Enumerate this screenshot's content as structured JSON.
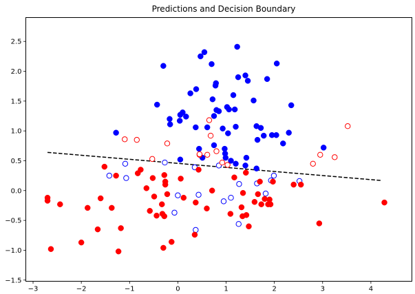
{
  "chart_data": {
    "type": "scatter",
    "title": "Predictions and Decision Boundary",
    "xlabel": "",
    "ylabel": "",
    "xlim": [
      -3.15,
      4.85
    ],
    "ylim": [
      -1.52,
      2.9
    ],
    "xticks": [
      -3,
      -2,
      -1,
      0,
      1,
      2,
      3,
      4
    ],
    "yticks": [
      -1.5,
      -1.0,
      -0.5,
      0.0,
      0.5,
      1.0,
      1.5,
      2.0,
      2.5
    ],
    "xtick_labels": [
      "−3",
      "−2",
      "−1",
      "0",
      "1",
      "2",
      "3",
      "4"
    ],
    "ytick_labels": [
      "−1.5",
      "−1.0",
      "−0.5",
      "0.0",
      "0.5",
      "1.0",
      "1.5",
      "2.0",
      "2.5"
    ],
    "grid": false,
    "colors": {
      "class_0": "#ff0000",
      "class_1": "#0000ff",
      "boundary": "#000000"
    },
    "decision_boundary": {
      "x": [
        -2.7,
        4.2
      ],
      "y": [
        0.64,
        0.17
      ],
      "style": "dashed"
    },
    "series": [
      {
        "class": 1,
        "marker": "filled",
        "color": "#0000ff",
        "points": [
          [
            -1.28,
            0.97
          ],
          [
            -0.43,
            1.44
          ],
          [
            -0.3,
            2.09
          ],
          [
            -0.17,
            1.2
          ],
          [
            -0.16,
            1.11
          ],
          [
            0.04,
            1.17
          ],
          [
            0.05,
            1.27
          ],
          [
            0.1,
            1.31
          ],
          [
            0.17,
            1.24
          ],
          [
            0.26,
            1.63
          ],
          [
            0.37,
            1.06
          ],
          [
            0.38,
            1.7
          ],
          [
            0.47,
            2.25
          ],
          [
            0.55,
            2.32
          ],
          [
            0.61,
            1.06
          ],
          [
            0.7,
            2.12
          ],
          [
            0.72,
            1.53
          ],
          [
            0.75,
            1.25
          ],
          [
            0.78,
            1.76
          ],
          [
            0.79,
            1.8
          ],
          [
            0.8,
            1.35
          ],
          [
            0.85,
            1.33
          ],
          [
            0.93,
            1.04
          ],
          [
            0.97,
            0.7
          ],
          [
            0.98,
            0.62
          ],
          [
            0.99,
            0.55
          ],
          [
            1.02,
            1.4
          ],
          [
            1.04,
            0.96
          ],
          [
            1.06,
            1.36
          ],
          [
            1.15,
            1.6
          ],
          [
            1.18,
            1.36
          ],
          [
            1.2,
            1.07
          ],
          [
            1.23,
            2.41
          ],
          [
            1.25,
            1.9
          ],
          [
            1.4,
            1.93
          ],
          [
            1.45,
            1.84
          ],
          [
            1.57,
            1.51
          ],
          [
            1.63,
            1.08
          ],
          [
            1.65,
            0.85
          ],
          [
            1.72,
            1.05
          ],
          [
            1.78,
            0.92
          ],
          [
            1.85,
            1.87
          ],
          [
            1.95,
            0.93
          ],
          [
            2.04,
            0.93
          ],
          [
            2.05,
            2.13
          ],
          [
            2.18,
            0.79
          ],
          [
            2.3,
            0.97
          ],
          [
            2.35,
            1.43
          ],
          [
            3.02,
            0.72
          ],
          [
            0.05,
            0.52
          ],
          [
            0.44,
            0.7
          ],
          [
            0.51,
            0.55
          ],
          [
            0.75,
            0.76
          ],
          [
            1.1,
            0.5
          ],
          [
            1.2,
            0.45
          ],
          [
            1.4,
            0.42
          ],
          [
            1.63,
            0.37
          ],
          [
            1.42,
            0.55
          ]
        ]
      },
      {
        "class": 1,
        "marker": "hollow",
        "color": "#0000ff",
        "points": [
          [
            -1.42,
            0.25
          ],
          [
            -1.09,
            0.45
          ],
          [
            -1.07,
            0.21
          ],
          [
            -0.27,
            0.47
          ],
          [
            -0.07,
            -0.37
          ],
          [
            0.0,
            -0.08
          ],
          [
            0.35,
            0.39
          ],
          [
            0.37,
            -0.66
          ],
          [
            0.43,
            -0.07
          ],
          [
            0.85,
            0.42
          ],
          [
            0.95,
            -0.18
          ],
          [
            1.1,
            -0.12
          ],
          [
            1.26,
            -0.56
          ],
          [
            1.27,
            0.11
          ],
          [
            1.64,
            0.12
          ],
          [
            1.82,
            -0.05
          ],
          [
            1.93,
            0.17
          ],
          [
            1.99,
            0.25
          ],
          [
            2.52,
            0.16
          ]
        ]
      },
      {
        "class": 0,
        "marker": "filled",
        "color": "#ff0000",
        "points": [
          [
            -2.7,
            -0.12
          ],
          [
            -2.7,
            -0.17
          ],
          [
            -2.63,
            -0.98
          ],
          [
            -2.44,
            -0.23
          ],
          [
            -2.0,
            -0.87
          ],
          [
            -1.87,
            -0.29
          ],
          [
            -1.66,
            -0.65
          ],
          [
            -1.6,
            -0.13
          ],
          [
            -1.52,
            0.4
          ],
          [
            -1.37,
            -0.29
          ],
          [
            -1.28,
            0.25
          ],
          [
            -1.23,
            -1.02
          ],
          [
            -1.18,
            -0.63
          ],
          [
            -0.83,
            0.29
          ],
          [
            -0.77,
            0.35
          ],
          [
            -0.65,
            0.04
          ],
          [
            -0.58,
            -0.34
          ],
          [
            -0.52,
            0.21
          ],
          [
            -0.49,
            -0.1
          ],
          [
            -0.44,
            -0.42
          ],
          [
            -0.33,
            -0.23
          ],
          [
            -0.32,
            -0.39
          ],
          [
            -0.3,
            -0.96
          ],
          [
            -0.28,
            0.26
          ],
          [
            -0.28,
            -0.43
          ],
          [
            -0.26,
            0.15
          ],
          [
            -0.26,
            0.1
          ],
          [
            -0.22,
            -0.06
          ],
          [
            -0.13,
            -0.86
          ],
          [
            0.06,
            0.2
          ],
          [
            0.12,
            -0.12
          ],
          [
            0.35,
            -0.74
          ],
          [
            0.37,
            -0.2
          ],
          [
            0.43,
            0.35
          ],
          [
            0.6,
            -0.3
          ],
          [
            0.71,
            0.0
          ],
          [
            1.09,
            -0.39
          ],
          [
            1.17,
            0.22
          ],
          [
            1.32,
            -0.28
          ],
          [
            1.34,
            -0.43
          ],
          [
            1.35,
            -0.04
          ],
          [
            1.42,
            -0.41
          ],
          [
            1.47,
            -0.6
          ],
          [
            1.59,
            -0.19
          ],
          [
            1.66,
            -0.06
          ],
          [
            1.7,
            0.15
          ],
          [
            1.73,
            -0.23
          ],
          [
            1.8,
            -0.14
          ],
          [
            1.87,
            -0.23
          ],
          [
            1.9,
            -0.15
          ],
          [
            1.92,
            -0.23
          ],
          [
            1.97,
            0.15
          ],
          [
            2.4,
            0.1
          ],
          [
            2.55,
            0.1
          ],
          [
            2.93,
            -0.55
          ],
          [
            4.28,
            -0.2
          ],
          [
            1.41,
            0.3
          ],
          [
            0.45,
            0.6
          ]
        ]
      },
      {
        "class": 0,
        "marker": "hollow",
        "color": "#ff0000",
        "points": [
          [
            -1.1,
            0.86
          ],
          [
            -0.85,
            0.85
          ],
          [
            -0.53,
            0.53
          ],
          [
            -0.22,
            0.79
          ],
          [
            0.45,
            0.61
          ],
          [
            0.61,
            0.6
          ],
          [
            0.65,
            1.18
          ],
          [
            0.68,
            0.92
          ],
          [
            0.8,
            0.66
          ],
          [
            0.92,
            0.47
          ],
          [
            1.03,
            0.43
          ],
          [
            2.8,
            0.45
          ],
          [
            2.95,
            0.6
          ],
          [
            3.25,
            0.56
          ],
          [
            3.52,
            1.08
          ]
        ]
      }
    ]
  }
}
